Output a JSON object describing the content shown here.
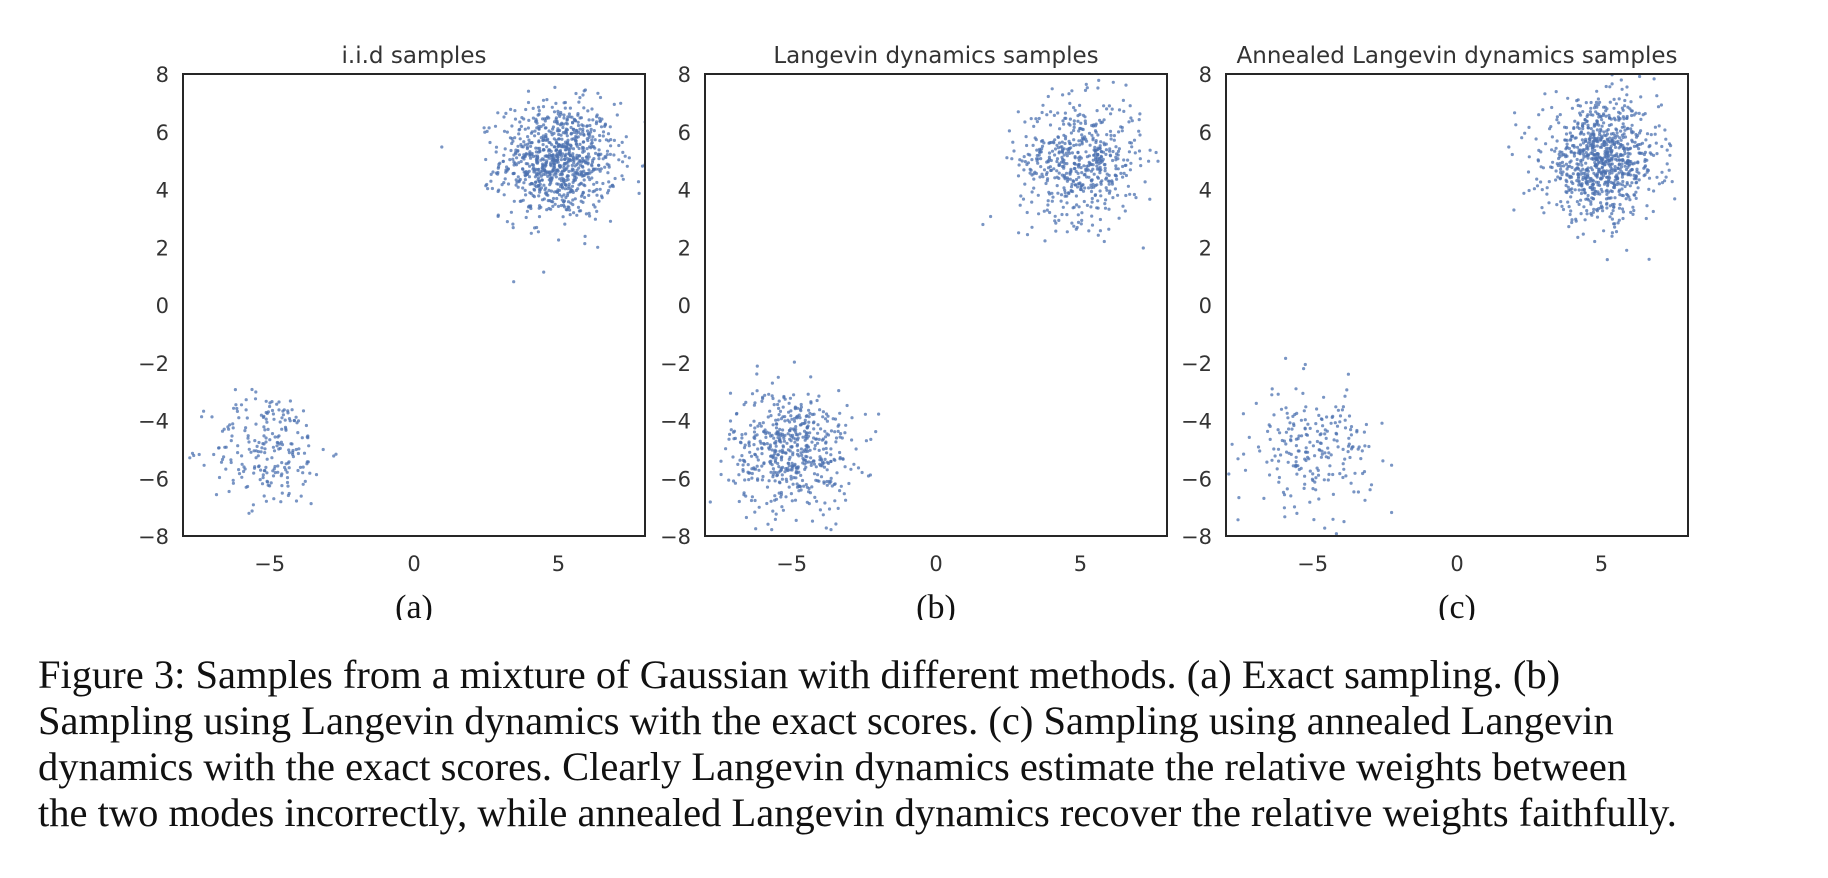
{
  "chart_data": [
    {
      "type": "scatter",
      "title": "i.i.d samples",
      "panel_label": "(a)",
      "xlim": [
        -8,
        8
      ],
      "ylim": [
        -8,
        8
      ],
      "xticks": [
        -5,
        0,
        5
      ],
      "yticks": [
        -8,
        -6,
        -4,
        -2,
        0,
        2,
        4,
        6,
        8
      ],
      "grid": false,
      "point_color": "#4C72B0",
      "clusters": [
        {
          "center": [
            5,
            5
          ],
          "spread": 1.0,
          "count": 900
        },
        {
          "center": [
            -5,
            -5
          ],
          "spread": 1.0,
          "count": 230
        }
      ]
    },
    {
      "type": "scatter",
      "title": "Langevin dynamics samples",
      "panel_label": "(b)",
      "xlim": [
        -8,
        8
      ],
      "ylim": [
        -8,
        8
      ],
      "xticks": [
        -5,
        0,
        5
      ],
      "yticks": [
        -8,
        -6,
        -4,
        -2,
        0,
        2,
        4,
        6,
        8
      ],
      "grid": false,
      "point_color": "#4C72B0",
      "clusters": [
        {
          "center": [
            5,
            5
          ],
          "spread": 1.05,
          "count": 560
        },
        {
          "center": [
            -5,
            -5
          ],
          "spread": 1.05,
          "count": 560
        }
      ]
    },
    {
      "type": "scatter",
      "title": "Annealed Langevin dynamics samples",
      "panel_label": "(c)",
      "xlim": [
        -8,
        8
      ],
      "ylim": [
        -8,
        8
      ],
      "xticks": [
        -5,
        0,
        5
      ],
      "yticks": [
        -8,
        -6,
        -4,
        -2,
        0,
        2,
        4,
        6,
        8
      ],
      "grid": false,
      "point_color": "#4C72B0",
      "clusters": [
        {
          "center": [
            5,
            5
          ],
          "spread": 1.0,
          "count": 900
        },
        {
          "center": [
            -5,
            -5
          ],
          "spread": 1.05,
          "count": 230
        }
      ]
    }
  ],
  "caption_lines": [
    "Figure 3: Samples from a mixture of Gaussian with different methods. (a) Exact sampling. (b)",
    "Sampling using Langevin dynamics with the exact scores. (c) Sampling using annealed Langevin",
    "dynamics with the exact scores. Clearly Langevin dynamics estimate the relative weights between",
    "the two modes incorrectly, while annealed Langevin dynamics recover the relative weights faithfully."
  ]
}
